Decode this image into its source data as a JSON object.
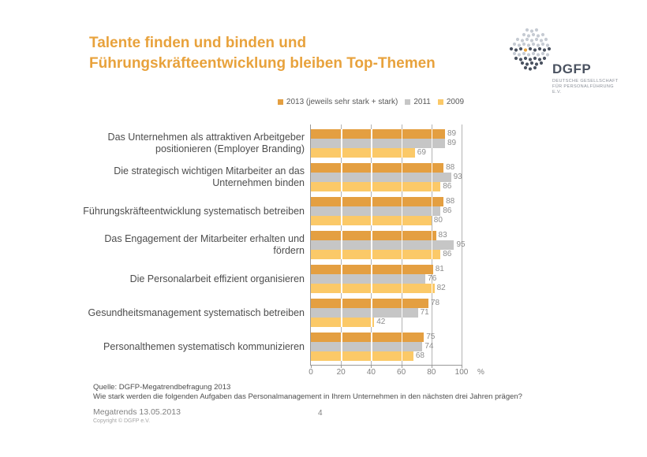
{
  "title": {
    "line1": "Talente finden und binden und",
    "line2": "Führungskräfteentwicklung bleiben Top-Themen"
  },
  "logo": {
    "name": "DGFP",
    "subtext_line1": "Deutsche Gesellschaft",
    "subtext_line2": "für Personalführung e.V.",
    "accent_color": "#E8A23C",
    "dot_light": "#C6CBD3",
    "dot_dark": "#4A5260"
  },
  "chart_data": {
    "type": "bar",
    "orientation": "horizontal",
    "title": "",
    "xlabel": "",
    "ylabel": "",
    "axis_unit": "%",
    "xlim": [
      0,
      100
    ],
    "ticks": [
      0,
      20,
      40,
      60,
      80,
      100
    ],
    "grid": true,
    "legend_position": "top",
    "categories": [
      "Das Unternehmen als attraktiven Arbeitgeber positionieren (Employer Branding)",
      "Die strategisch wichtigen Mitarbeiter an das Unternehmen binden",
      "Führungskräfteentwicklung systematisch betreiben",
      "Das Engagement der Mitarbeiter erhalten und fördern",
      "Die Personalarbeit effizient organisieren",
      "Gesundheitsmanagement systematisch betreiben",
      "Personalthemen systematisch kommunizieren"
    ],
    "series": [
      {
        "name": "2013 (jeweils sehr stark + stark)",
        "color": "#E49F41",
        "values": [
          89,
          88,
          88,
          83,
          81,
          78,
          75
        ]
      },
      {
        "name": "2011",
        "color": "#C6C6C6",
        "values": [
          89,
          93,
          86,
          95,
          76,
          71,
          74
        ]
      },
      {
        "name": "2009",
        "color": "#FBC968",
        "values": [
          69,
          86,
          80,
          86,
          82,
          42,
          68
        ]
      }
    ]
  },
  "footer": {
    "source_line1": "Quelle: DGFP-Megatrendbefragung 2013",
    "source_line2": "Wie stark werden die folgenden Aufgaben das Personalmanagement in Ihrem Unternehmen in den nächsten drei Jahren prägen?",
    "deck_title": "Megatrends 13.05.2013",
    "copyright": "Copyright © DGFP e.V.",
    "page_number": "4"
  }
}
